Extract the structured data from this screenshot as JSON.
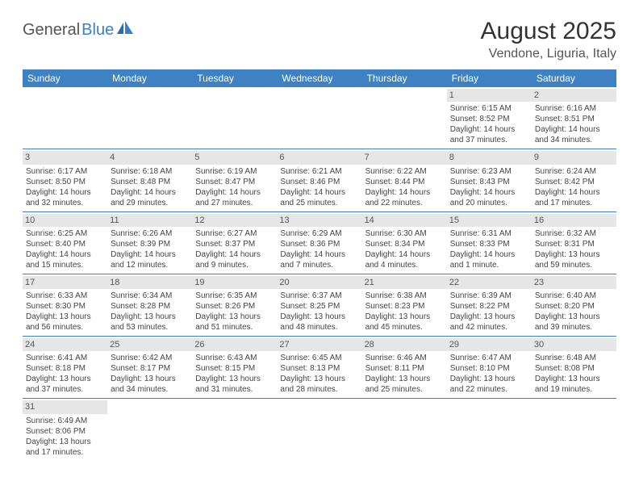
{
  "brand": {
    "part1": "General",
    "part2": "Blue"
  },
  "title": "August 2025",
  "location": "Vendone, Liguria, Italy",
  "colors": {
    "header_bg": "#3e82c4",
    "header_text": "#ffffff",
    "daynum_bg": "#e6e6e6",
    "brand_accent": "#3b7fc4",
    "rule": "#3e82c4"
  },
  "weekdays": [
    "Sunday",
    "Monday",
    "Tuesday",
    "Wednesday",
    "Thursday",
    "Friday",
    "Saturday"
  ],
  "weeks": [
    [
      null,
      null,
      null,
      null,
      null,
      {
        "n": "1",
        "sr": "Sunrise: 6:15 AM",
        "ss": "Sunset: 8:52 PM",
        "dl": "Daylight: 14 hours and 37 minutes."
      },
      {
        "n": "2",
        "sr": "Sunrise: 6:16 AM",
        "ss": "Sunset: 8:51 PM",
        "dl": "Daylight: 14 hours and 34 minutes."
      }
    ],
    [
      {
        "n": "3",
        "sr": "Sunrise: 6:17 AM",
        "ss": "Sunset: 8:50 PM",
        "dl": "Daylight: 14 hours and 32 minutes."
      },
      {
        "n": "4",
        "sr": "Sunrise: 6:18 AM",
        "ss": "Sunset: 8:48 PM",
        "dl": "Daylight: 14 hours and 29 minutes."
      },
      {
        "n": "5",
        "sr": "Sunrise: 6:19 AM",
        "ss": "Sunset: 8:47 PM",
        "dl": "Daylight: 14 hours and 27 minutes."
      },
      {
        "n": "6",
        "sr": "Sunrise: 6:21 AM",
        "ss": "Sunset: 8:46 PM",
        "dl": "Daylight: 14 hours and 25 minutes."
      },
      {
        "n": "7",
        "sr": "Sunrise: 6:22 AM",
        "ss": "Sunset: 8:44 PM",
        "dl": "Daylight: 14 hours and 22 minutes."
      },
      {
        "n": "8",
        "sr": "Sunrise: 6:23 AM",
        "ss": "Sunset: 8:43 PM",
        "dl": "Daylight: 14 hours and 20 minutes."
      },
      {
        "n": "9",
        "sr": "Sunrise: 6:24 AM",
        "ss": "Sunset: 8:42 PM",
        "dl": "Daylight: 14 hours and 17 minutes."
      }
    ],
    [
      {
        "n": "10",
        "sr": "Sunrise: 6:25 AM",
        "ss": "Sunset: 8:40 PM",
        "dl": "Daylight: 14 hours and 15 minutes."
      },
      {
        "n": "11",
        "sr": "Sunrise: 6:26 AM",
        "ss": "Sunset: 8:39 PM",
        "dl": "Daylight: 14 hours and 12 minutes."
      },
      {
        "n": "12",
        "sr": "Sunrise: 6:27 AM",
        "ss": "Sunset: 8:37 PM",
        "dl": "Daylight: 14 hours and 9 minutes."
      },
      {
        "n": "13",
        "sr": "Sunrise: 6:29 AM",
        "ss": "Sunset: 8:36 PM",
        "dl": "Daylight: 14 hours and 7 minutes."
      },
      {
        "n": "14",
        "sr": "Sunrise: 6:30 AM",
        "ss": "Sunset: 8:34 PM",
        "dl": "Daylight: 14 hours and 4 minutes."
      },
      {
        "n": "15",
        "sr": "Sunrise: 6:31 AM",
        "ss": "Sunset: 8:33 PM",
        "dl": "Daylight: 14 hours and 1 minute."
      },
      {
        "n": "16",
        "sr": "Sunrise: 6:32 AM",
        "ss": "Sunset: 8:31 PM",
        "dl": "Daylight: 13 hours and 59 minutes."
      }
    ],
    [
      {
        "n": "17",
        "sr": "Sunrise: 6:33 AM",
        "ss": "Sunset: 8:30 PM",
        "dl": "Daylight: 13 hours and 56 minutes."
      },
      {
        "n": "18",
        "sr": "Sunrise: 6:34 AM",
        "ss": "Sunset: 8:28 PM",
        "dl": "Daylight: 13 hours and 53 minutes."
      },
      {
        "n": "19",
        "sr": "Sunrise: 6:35 AM",
        "ss": "Sunset: 8:26 PM",
        "dl": "Daylight: 13 hours and 51 minutes."
      },
      {
        "n": "20",
        "sr": "Sunrise: 6:37 AM",
        "ss": "Sunset: 8:25 PM",
        "dl": "Daylight: 13 hours and 48 minutes."
      },
      {
        "n": "21",
        "sr": "Sunrise: 6:38 AM",
        "ss": "Sunset: 8:23 PM",
        "dl": "Daylight: 13 hours and 45 minutes."
      },
      {
        "n": "22",
        "sr": "Sunrise: 6:39 AM",
        "ss": "Sunset: 8:22 PM",
        "dl": "Daylight: 13 hours and 42 minutes."
      },
      {
        "n": "23",
        "sr": "Sunrise: 6:40 AM",
        "ss": "Sunset: 8:20 PM",
        "dl": "Daylight: 13 hours and 39 minutes."
      }
    ],
    [
      {
        "n": "24",
        "sr": "Sunrise: 6:41 AM",
        "ss": "Sunset: 8:18 PM",
        "dl": "Daylight: 13 hours and 37 minutes."
      },
      {
        "n": "25",
        "sr": "Sunrise: 6:42 AM",
        "ss": "Sunset: 8:17 PM",
        "dl": "Daylight: 13 hours and 34 minutes."
      },
      {
        "n": "26",
        "sr": "Sunrise: 6:43 AM",
        "ss": "Sunset: 8:15 PM",
        "dl": "Daylight: 13 hours and 31 minutes."
      },
      {
        "n": "27",
        "sr": "Sunrise: 6:45 AM",
        "ss": "Sunset: 8:13 PM",
        "dl": "Daylight: 13 hours and 28 minutes."
      },
      {
        "n": "28",
        "sr": "Sunrise: 6:46 AM",
        "ss": "Sunset: 8:11 PM",
        "dl": "Daylight: 13 hours and 25 minutes."
      },
      {
        "n": "29",
        "sr": "Sunrise: 6:47 AM",
        "ss": "Sunset: 8:10 PM",
        "dl": "Daylight: 13 hours and 22 minutes."
      },
      {
        "n": "30",
        "sr": "Sunrise: 6:48 AM",
        "ss": "Sunset: 8:08 PM",
        "dl": "Daylight: 13 hours and 19 minutes."
      }
    ],
    [
      {
        "n": "31",
        "sr": "Sunrise: 6:49 AM",
        "ss": "Sunset: 8:06 PM",
        "dl": "Daylight: 13 hours and 17 minutes."
      },
      null,
      null,
      null,
      null,
      null,
      null
    ]
  ]
}
